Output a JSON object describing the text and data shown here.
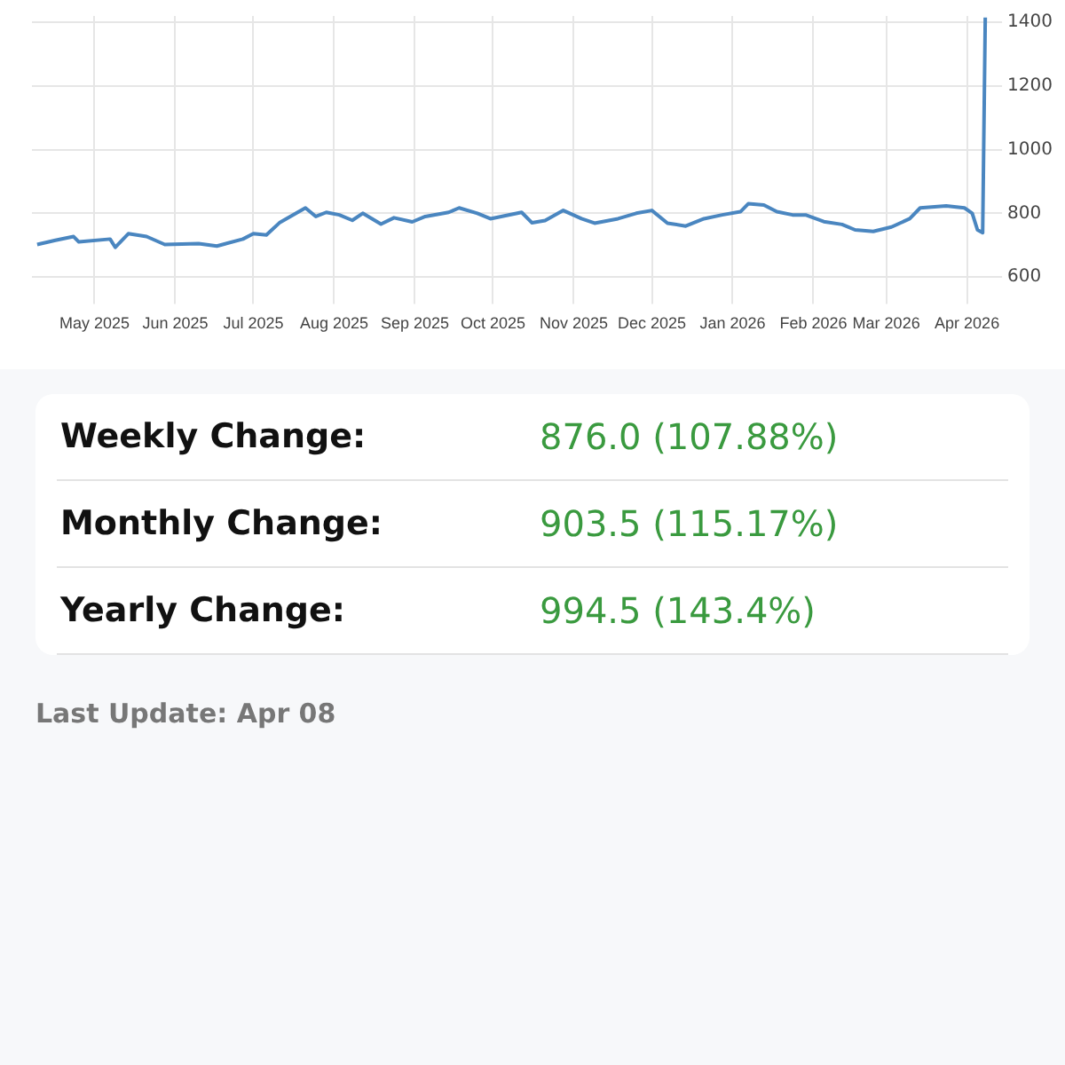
{
  "chart_data": [
    {
      "type": "line",
      "x": [
        "2025-04-09",
        "2025-04-16",
        "2025-04-23",
        "2025-04-25",
        "2025-05-07",
        "2025-05-09",
        "2025-05-14",
        "2025-05-21",
        "2025-05-28",
        "2025-06-10",
        "2025-06-17",
        "2025-06-27",
        "2025-07-01",
        "2025-07-06",
        "2025-07-11",
        "2025-07-18",
        "2025-07-21",
        "2025-07-25",
        "2025-07-29",
        "2025-08-03",
        "2025-08-08",
        "2025-08-12",
        "2025-08-19",
        "2025-08-24",
        "2025-08-31",
        "2025-09-05",
        "2025-09-14",
        "2025-09-18",
        "2025-09-25",
        "2025-09-30",
        "2025-10-12",
        "2025-10-16",
        "2025-10-21",
        "2025-10-28",
        "2025-11-04",
        "2025-11-09",
        "2025-11-18",
        "2025-11-25",
        "2025-12-01",
        "2025-12-07",
        "2025-12-14",
        "2025-12-21",
        "2025-12-28",
        "2026-01-04",
        "2026-01-07",
        "2026-01-13",
        "2026-01-18",
        "2026-01-24",
        "2026-01-29",
        "2026-02-05",
        "2026-02-12",
        "2026-02-17",
        "2026-02-24",
        "2026-03-03",
        "2026-03-10",
        "2026-03-14",
        "2026-03-24",
        "2026-03-31",
        "2026-04-03",
        "2026-04-05",
        "2026-04-07",
        "2026-04-08"
      ],
      "series": [
        {
          "color": "#4a86c0",
          "values": [
            702,
            715,
            727,
            710,
            719,
            693,
            736,
            727,
            702,
            705,
            697,
            719,
            736,
            732,
            770,
            803,
            817,
            790,
            803,
            795,
            778,
            800,
            766,
            786,
            773,
            790,
            803,
            817,
            800,
            783,
            803,
            770,
            777,
            809,
            783,
            769,
            783,
            800,
            809,
            769,
            760,
            783,
            795,
            805,
            830,
            826,
            805,
            795,
            795,
            774,
            765,
            748,
            743,
            757,
            783,
            817,
            823,
            817,
            800,
            748,
            739,
            1415
          ]
        }
      ],
      "xlim": [
        "2025-04-07",
        "2026-04-09"
      ],
      "xticks": [
        {
          "value": "2025-05-01",
          "label": "May 2025"
        },
        {
          "value": "2025-06-01",
          "label": "Jun 2025"
        },
        {
          "value": "2025-07-01",
          "label": "Jul 2025"
        },
        {
          "value": "2025-08-01",
          "label": "Aug 2025"
        },
        {
          "value": "2025-09-01",
          "label": "Sep 2025"
        },
        {
          "value": "2025-10-01",
          "label": "Oct 2025"
        },
        {
          "value": "2025-11-01",
          "label": "Nov 2025"
        },
        {
          "value": "2025-12-01",
          "label": "Dec 2025"
        },
        {
          "value": "2026-01-01",
          "label": "Jan 2026"
        },
        {
          "value": "2026-02-01",
          "label": "Feb 2026"
        },
        {
          "value": "2026-03-01",
          "label": "Mar 2026"
        },
        {
          "value": "2026-04-01",
          "label": "Apr 2026"
        }
      ],
      "ylim": [
        560,
        1420
      ],
      "yticks": [
        600,
        800,
        1000,
        1200,
        1400
      ],
      "grid": true,
      "marker": "none",
      "line_style": "solid"
    },
    {
      "type": "other",
      "annotations": [
        "Weekly Change:",
        "876.0 (107.88%)",
        "Monthly Change:",
        "903.5 (115.17%)",
        "Yearly Change:",
        "994.5 (143.4%)",
        "Last Update: Apr 08"
      ]
    }
  ]
}
